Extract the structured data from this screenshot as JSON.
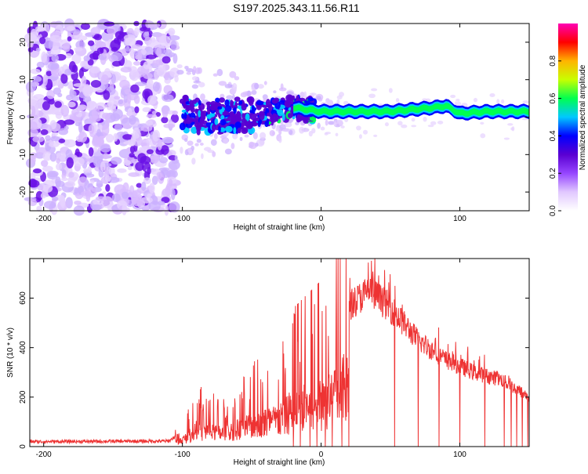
{
  "title": "S197.2025.343.11.56.R11",
  "chart_data": [
    {
      "type": "heatmap",
      "name": "spectrogram",
      "xlabel": "Height of straight line (km)",
      "ylabel": "Frequency (Hz)",
      "xlim": [
        -210,
        150
      ],
      "ylim": [
        -25,
        25
      ],
      "xticks": [
        -200,
        -100,
        0,
        100
      ],
      "yticks": [
        -20,
        -10,
        0,
        10,
        20
      ],
      "colorbar": {
        "label": "Normalized spectral amplitude",
        "range": [
          0,
          1
        ],
        "ticks": [
          0.0,
          0.2,
          0.4,
          0.6,
          0.8
        ],
        "colors": [
          "#ffffff",
          "#e1c8ff",
          "#9646ff",
          "#5a00d2",
          "#0000ff",
          "#00c8ff",
          "#00ff50",
          "#c8ff00",
          "#ffb400",
          "#ff0000",
          "#ff00b4"
        ]
      },
      "features": {
        "noise_region_km": [
          -210,
          -105
        ],
        "carrier_center_hz": [
          {
            "x": -100,
            "f": 1
          },
          {
            "x": -80,
            "f": 0
          },
          {
            "x": -60,
            "f": 0.5
          },
          {
            "x": -40,
            "f": 1
          },
          {
            "x": -20,
            "f": 2.5
          },
          {
            "x": 0,
            "f": 1.5
          },
          {
            "x": 20,
            "f": 1.5
          },
          {
            "x": 50,
            "f": 1.5
          },
          {
            "x": 80,
            "f": 2.5
          },
          {
            "x": 90,
            "f": 3
          },
          {
            "x": 100,
            "f": 1
          },
          {
            "x": 120,
            "f": 1.5
          },
          {
            "x": 150,
            "f": 1.5
          }
        ]
      }
    },
    {
      "type": "line",
      "name": "snr",
      "color": "#ee3333",
      "xlabel": "Height of straight line (km)",
      "ylabel": "SNR (10 * v/v)",
      "xlim": [
        -210,
        150
      ],
      "ylim": [
        0,
        760
      ],
      "xticks": [
        -200,
        -100,
        0,
        100
      ],
      "yticks": [
        0,
        200,
        400,
        600
      ],
      "envelope": [
        {
          "x": -210,
          "y": 20
        },
        {
          "x": -110,
          "y": 22
        },
        {
          "x": -100,
          "y": 60
        },
        {
          "x": -90,
          "y": 150
        },
        {
          "x": -70,
          "y": 120
        },
        {
          "x": -50,
          "y": 200
        },
        {
          "x": -30,
          "y": 250
        },
        {
          "x": -20,
          "y": 350
        },
        {
          "x": 0,
          "y": 420
        },
        {
          "x": 10,
          "y": 480
        },
        {
          "x": 20,
          "y": 570
        },
        {
          "x": 35,
          "y": 630
        },
        {
          "x": 50,
          "y": 560
        },
        {
          "x": 70,
          "y": 430
        },
        {
          "x": 90,
          "y": 350
        },
        {
          "x": 110,
          "y": 300
        },
        {
          "x": 130,
          "y": 270
        },
        {
          "x": 150,
          "y": 200
        }
      ],
      "dropouts_km": [
        -20,
        -15,
        -8,
        -3,
        3,
        8,
        15,
        20,
        53,
        70,
        85,
        100,
        118,
        132,
        137,
        141,
        145,
        149
      ]
    }
  ]
}
